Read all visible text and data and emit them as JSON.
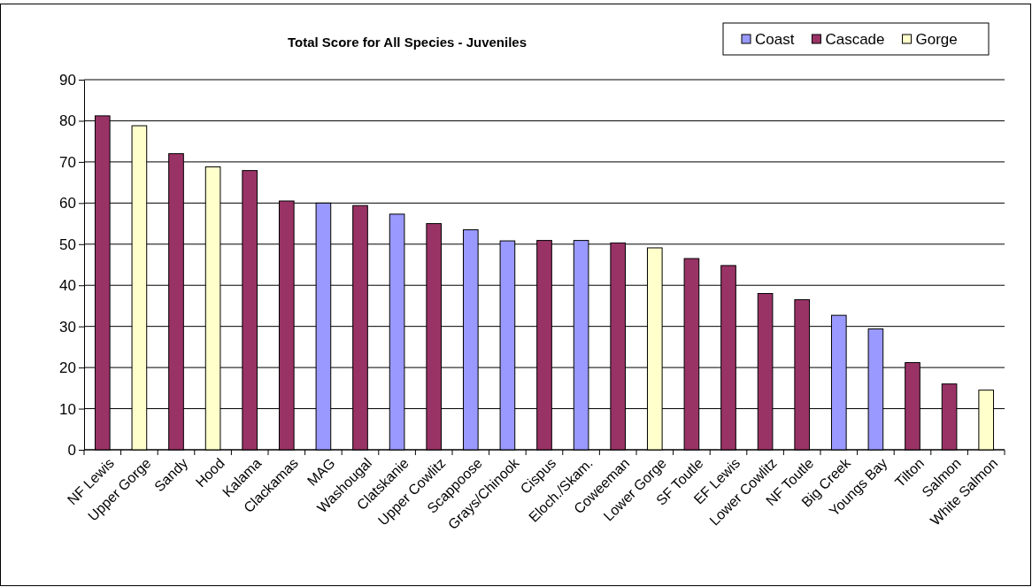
{
  "chart_data": {
    "type": "bar",
    "title": "Total Score for All Species - Juveniles",
    "stacked": true,
    "legend": "top right",
    "grid": "y",
    "ylim": [
      0,
      90
    ],
    "yticks": [
      0,
      10,
      20,
      30,
      40,
      50,
      60,
      70,
      80,
      90
    ],
    "categories": [
      "NF Lewis",
      "Upper Gorge",
      "Sandy",
      "Hood",
      "Kalama",
      "Clackamas",
      "MAG",
      "Washougal",
      "Clatskanie",
      "Upper Cowlitz",
      "Scappoose",
      "Grays/Chinook",
      "Cispus",
      "Eloch./Skam.",
      "Coweeman",
      "Lower Gorge",
      "SF Toutle",
      "EF Lewis",
      "Lower Cowlitz",
      "NF Toutle",
      "Big Creek",
      "Youngs Bay",
      "Tilton",
      "Salmon",
      "White Salmon"
    ],
    "series": [
      {
        "name": "Coast",
        "color": "#9999ff",
        "values": [
          null,
          null,
          null,
          null,
          null,
          null,
          60,
          null,
          57.3,
          null,
          53.5,
          50.8,
          null,
          50.9,
          null,
          null,
          null,
          null,
          null,
          null,
          32.7,
          29.4,
          null,
          null,
          null
        ]
      },
      {
        "name": "Cascade",
        "color": "#993366",
        "values": [
          81.2,
          null,
          72,
          null,
          67.9,
          60.5,
          null,
          59.4,
          null,
          55,
          null,
          null,
          50.9,
          null,
          50.3,
          null,
          46.5,
          44.8,
          38,
          36.5,
          null,
          null,
          21.2,
          16,
          null
        ]
      },
      {
        "name": "Gorge",
        "color": "#ffffcc",
        "values": [
          null,
          78.8,
          null,
          68.8,
          null,
          null,
          null,
          null,
          null,
          null,
          null,
          null,
          null,
          null,
          null,
          49.1,
          null,
          null,
          null,
          null,
          null,
          null,
          null,
          null,
          14.5
        ]
      }
    ]
  }
}
